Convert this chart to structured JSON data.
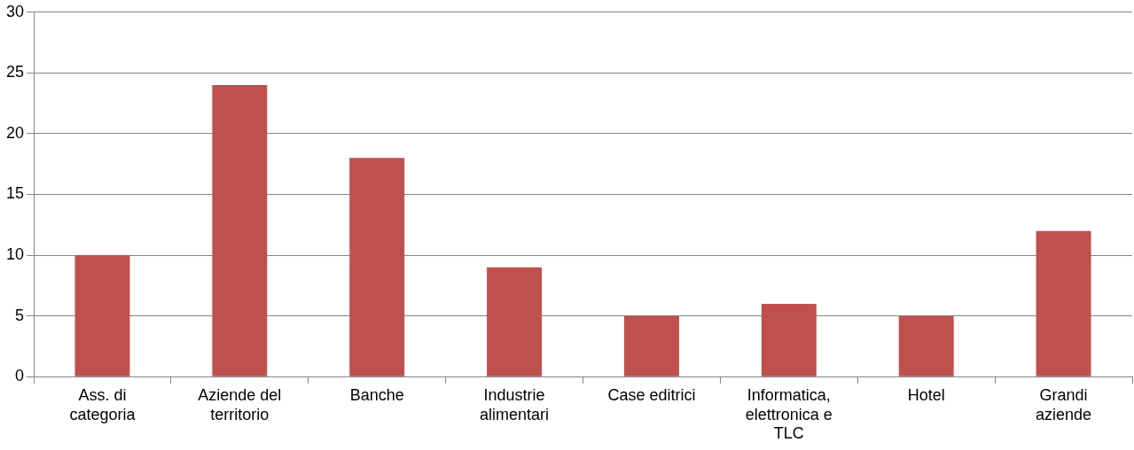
{
  "chart_data": {
    "type": "bar",
    "categories": [
      "Ass. di categoria",
      "Aziende del territorio",
      "Banche",
      "Industrie alimentari",
      "Case editrici",
      "Informatica, elettronica e TLC",
      "Hotel",
      "Grandi aziende"
    ],
    "values": [
      10,
      24,
      18,
      9,
      5,
      6,
      5,
      12
    ],
    "color": "#c0504d",
    "ylim": [
      0,
      30
    ],
    "yticks": [
      0,
      5,
      10,
      15,
      20,
      25,
      30
    ],
    "grid": "y",
    "legend": false
  }
}
